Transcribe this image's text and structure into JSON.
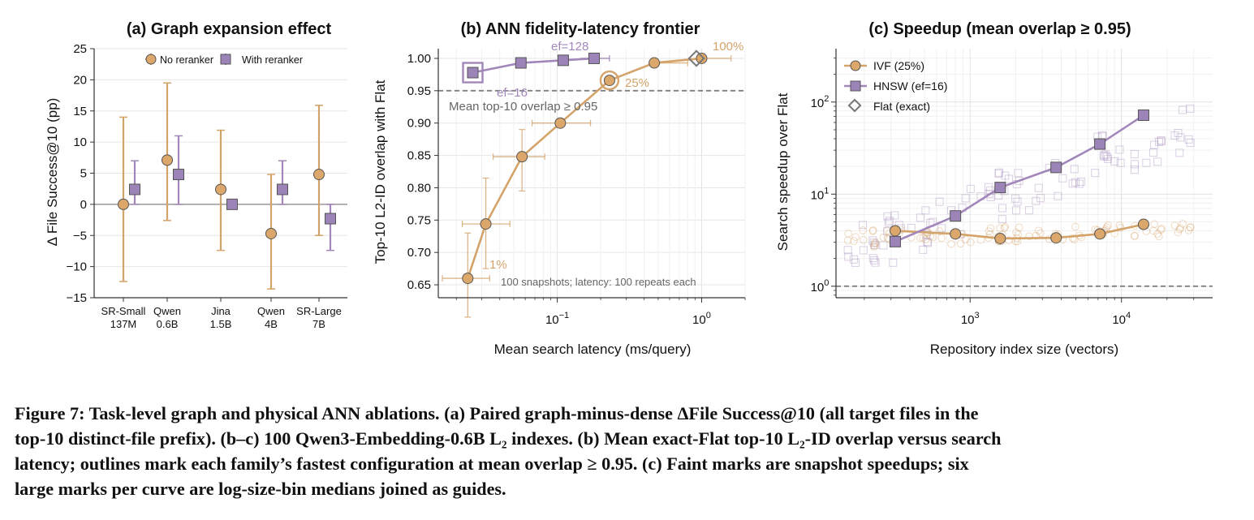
{
  "colors": {
    "ivf": "#D4A36A",
    "hnsw": "#A287BA",
    "ivf_face": "#DCA76A",
    "hnsw_face": "#9C84B8",
    "flat": "#777777",
    "ref": "#808080"
  },
  "panels": [
    {
      "title": "(a) Graph expansion effect",
      "legend": [
        "No reranker",
        "With reranker"
      ],
      "ylabel": "Δ File Success@10 (pp)",
      "ytick_labels": [
        "25",
        "20",
        "15",
        "10",
        "5",
        "0",
        "−5",
        "−10",
        "−15"
      ],
      "xtick_labels": [
        [
          "SR-Small",
          "137M"
        ],
        [
          "Qwen",
          "0.6B"
        ],
        [
          "Jina",
          "1.5B"
        ],
        [
          "Qwen",
          "4B"
        ],
        [
          "SR-Large",
          "7B"
        ]
      ]
    },
    {
      "title": "(b) ANN fidelity-latency frontier",
      "xlabel": "Mean search latency (ms/query)",
      "ylabel": "Top-10 L2-ID overlap with Flat",
      "ytick_labels": [
        "1.00",
        "0.95",
        "0.90",
        "0.85",
        "0.80",
        "0.75",
        "0.70",
        "0.65"
      ],
      "xtick_labels": [
        [
          "10",
          "−1"
        ],
        [
          "10",
          "0"
        ]
      ],
      "ref_label": "Mean top-10 overlap  ≥  0.95",
      "note": "100 snapshots; latency: 100 repeats each",
      "point_labels": [
        "ef=128",
        "ef=16",
        "100%",
        "25%",
        "1%"
      ]
    },
    {
      "title": "(c) Speedup (mean overlap  ≥  0.95)",
      "xlabel": "Repository index size (vectors)",
      "ylabel": "Search speedup over Flat",
      "ytick_labels": [
        [
          "10",
          "0"
        ],
        [
          "10",
          "1"
        ],
        [
          "10",
          "2"
        ]
      ],
      "xtick_labels": [
        [
          "10",
          "3"
        ],
        [
          "10",
          "4"
        ]
      ],
      "legend": [
        "IVF (25%)",
        "HNSW (ef=16)",
        "Flat (exact)"
      ]
    }
  ],
  "chart_data": [
    {
      "type": "scatter",
      "title": "(a) Graph expansion effect",
      "ylabel": "Δ File Success@10 (pp)",
      "categories": [
        "SR-Small 137M",
        "Qwen 0.6B",
        "Jina 1.5B",
        "Qwen 4B",
        "SR-Large 7B"
      ],
      "ylim": [
        -15,
        25
      ],
      "series": [
        {
          "name": "No reranker",
          "values": [
            0,
            7.1,
            2.4,
            -4.7,
            4.8
          ],
          "err_low": [
            -12.4,
            -2.6,
            -7.4,
            -13.6,
            -5.0
          ],
          "err_high": [
            14.0,
            19.5,
            11.9,
            4.8,
            15.9
          ]
        },
        {
          "name": "With reranker",
          "values": [
            2.4,
            4.8,
            0,
            2.4,
            -2.3
          ],
          "err_low": [
            0,
            0,
            0,
            0,
            -7.4
          ],
          "err_high": [
            7.0,
            11.0,
            0,
            7.0,
            0
          ]
        }
      ],
      "legend_position": "top",
      "grid": true
    },
    {
      "type": "line",
      "title": "(b) ANN fidelity-latency frontier",
      "xlabel": "Mean search latency (ms/query)",
      "ylabel": "Top-10 L2-ID overlap with Flat",
      "xscale": "log",
      "xlim": [
        0.015,
        2.0
      ],
      "ylim": [
        0.63,
        1.015
      ],
      "series": [
        {
          "name": "IVF",
          "x": [
            0.024,
            0.032,
            0.057,
            0.105,
            0.23,
            0.47,
            1.0
          ],
          "y": [
            0.66,
            0.744,
            0.848,
            0.9,
            0.966,
            0.993,
            1.0
          ],
          "xerr_low": [
            0.016,
            0.022,
            0.036,
            0.067,
            0.23,
            0.47,
            1.0
          ],
          "xerr_high": [
            0.034,
            0.047,
            0.082,
            0.17,
            0.23,
            0.8,
            1.6
          ],
          "yerr_low": [
            0.6,
            0.675,
            0.795,
            0.9,
            0.966,
            0.993,
            1.0
          ],
          "yerr_high": [
            0.73,
            0.815,
            0.89,
            0.9,
            0.966,
            0.993,
            1.0
          ]
        },
        {
          "name": "HNSW",
          "x": [
            0.026,
            0.056,
            0.11,
            0.18
          ],
          "y": [
            0.978,
            0.993,
            0.997,
            1.0
          ],
          "xerr_low": [
            0.026,
            0.056,
            0.11,
            0.145
          ],
          "xerr_high": [
            0.026,
            0.056,
            0.11,
            0.23
          ]
        },
        {
          "name": "Flat (exact)",
          "x": [
            0.92
          ],
          "y": [
            1.0
          ]
        }
      ],
      "reference_y": 0.95,
      "highlighted": [
        {
          "series": "IVF",
          "x": 0.23,
          "y": 0.966
        },
        {
          "series": "HNSW",
          "x": 0.026,
          "y": 0.978
        }
      ],
      "grid": true
    },
    {
      "type": "scatter",
      "title": "(c) Speedup (mean overlap  ≥  0.95)",
      "xlabel": "Repository index size (vectors)",
      "ylabel": "Search speedup over Flat",
      "xscale": "log",
      "yscale": "log",
      "xlim": [
        130,
        40000
      ],
      "ylim": [
        0.75,
        380
      ],
      "series": [
        {
          "name": "IVF (25%)",
          "x": [
            320,
            800,
            1580,
            3700,
            7200,
            14000
          ],
          "y": [
            4.0,
            3.7,
            3.3,
            3.35,
            3.7,
            4.7
          ]
        },
        {
          "name": "HNSW (ef=16)",
          "x": [
            320,
            800,
            1580,
            3700,
            7200,
            14000
          ],
          "y": [
            3.05,
            5.8,
            11.8,
            19.5,
            35.0,
            72.0
          ]
        }
      ],
      "reference_y": 1.0,
      "legend_position": "top-left",
      "grid": true
    }
  ],
  "caption": [
    "Figure 7: Task-level graph and physical ANN ablations. (a) Paired graph-minus-dense ΔFile Success@10 (all target files in the",
    "top-10 distinct-file prefix). (b–c) 100 Qwen3-Embedding-0.6B L₂ indexes. (b) Mean exact-Flat top-10 L₂-ID overlap versus search",
    "latency; outlines mark each family’s fastest configuration at mean overlap ≥ 0.95. (c) Faint marks are snapshot speedups; six",
    "large marks per curve are log-size-bin medians joined as guides."
  ]
}
